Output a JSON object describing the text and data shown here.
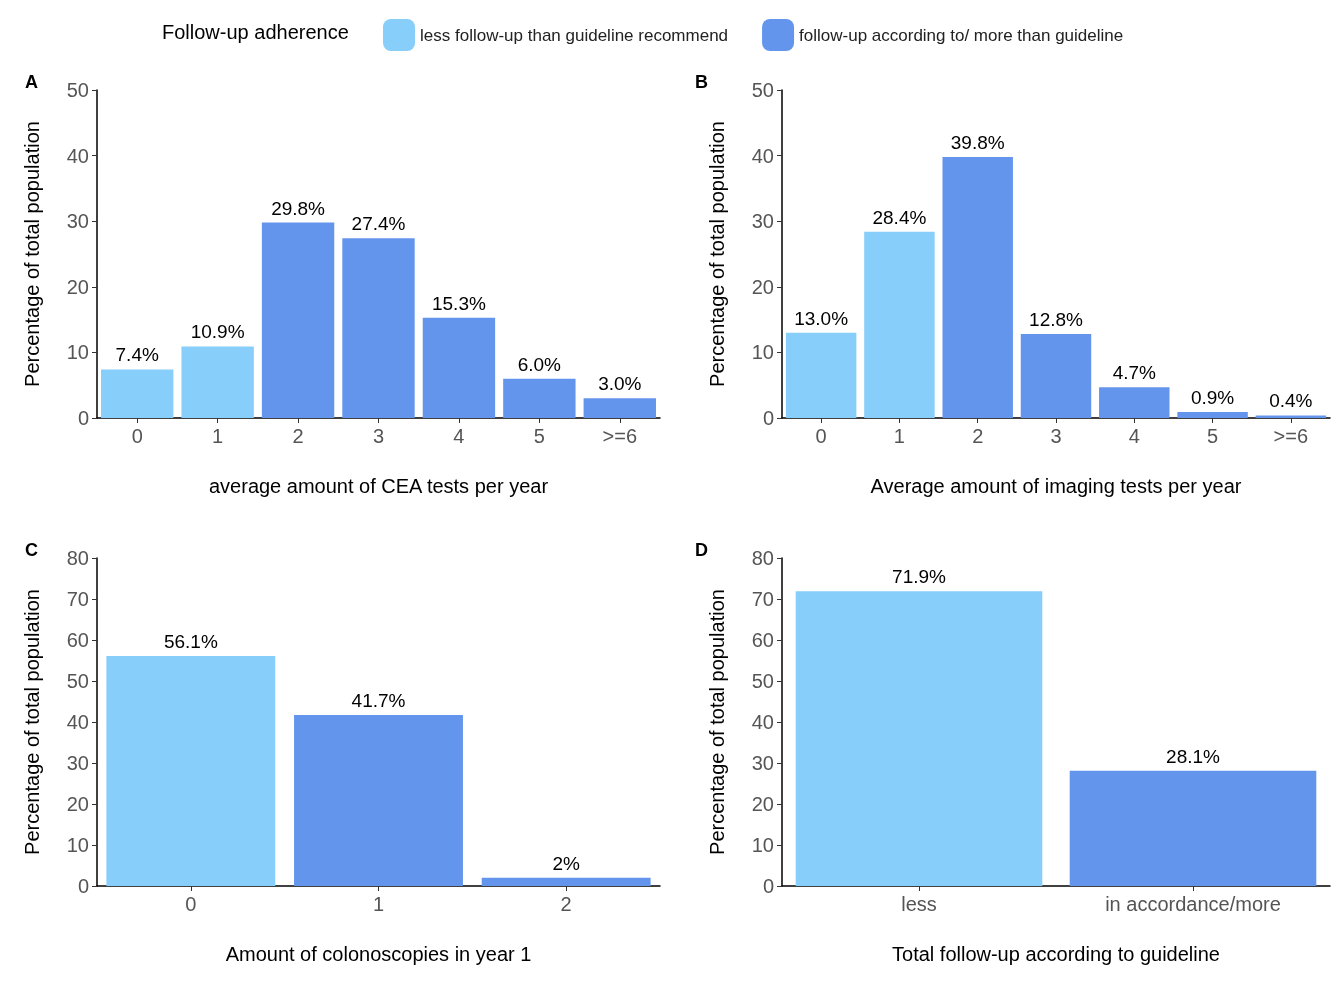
{
  "chart_data": [
    {
      "type": "bar",
      "title": "A",
      "legend_title": "Follow-up adherence",
      "legend": "top",
      "stacked": true,
      "xlabel": "average amount of CEA tests per year",
      "ylabel": "Percentage of total population",
      "categories": [
        "0",
        "1",
        "2",
        "3",
        "4",
        "5",
        ">=6"
      ],
      "ylim": [
        0,
        50
      ],
      "yticks": [
        0,
        10,
        20,
        30,
        40,
        50
      ],
      "grid": false,
      "series": [
        {
          "name": "less follow-up than guideline recommend",
          "color": "#87cefa",
          "values": [
            7.4,
            10.9,
            null,
            null,
            null,
            null,
            null
          ],
          "value_labels": [
            "7.4%",
            "10.9%",
            null,
            null,
            null,
            null,
            null
          ]
        },
        {
          "name": "follow-up according to/ more than guideline",
          "color": "#6495ed",
          "values": [
            null,
            null,
            29.8,
            27.4,
            15.3,
            6.0,
            3.0
          ],
          "value_labels": [
            null,
            null,
            "29.8%",
            "27.4%",
            "15.3%",
            "6.0%",
            "3.0%"
          ]
        }
      ]
    },
    {
      "type": "bar",
      "title": "B",
      "stacked": true,
      "xlabel": "Average amount of imaging tests per year",
      "ylabel": "Percentage of total population",
      "categories": [
        "0",
        "1",
        "2",
        "3",
        "4",
        "5",
        ">=6"
      ],
      "ylim": [
        0,
        50
      ],
      "yticks": [
        0,
        10,
        20,
        30,
        40,
        50
      ],
      "grid": false,
      "series": [
        {
          "color": "#87cefa",
          "values": [
            13.0,
            28.4,
            null,
            null,
            null,
            null,
            null
          ],
          "value_labels": [
            "13.0%",
            "28.4%",
            null,
            null,
            null,
            null,
            null
          ]
        },
        {
          "color": "#6495ed",
          "values": [
            null,
            null,
            39.8,
            12.8,
            4.7,
            0.9,
            0.4
          ],
          "value_labels": [
            null,
            null,
            "39.8%",
            "12.8%",
            "4.7%",
            "0.9%",
            "0.4%"
          ]
        }
      ]
    },
    {
      "type": "bar",
      "title": "C",
      "stacked": true,
      "xlabel": "Amount of colonoscopies in year 1",
      "ylabel": "Percentage of total population",
      "categories": [
        "0",
        "1",
        "2"
      ],
      "ylim": [
        0,
        80
      ],
      "yticks": [
        0,
        10,
        20,
        30,
        40,
        50,
        60,
        70,
        80
      ],
      "grid": false,
      "series": [
        {
          "color": "#87cefa",
          "values": [
            56.1,
            null,
            null
          ],
          "value_labels": [
            "56.1%",
            null,
            null
          ]
        },
        {
          "color": "#6495ed",
          "values": [
            null,
            41.7,
            2
          ],
          "value_labels": [
            null,
            "41.7%",
            "2%"
          ]
        }
      ]
    },
    {
      "type": "bar",
      "title": "D",
      "stacked": true,
      "xlabel": "Total follow-up according to guideline",
      "ylabel": "Percentage of total population",
      "categories": [
        "less",
        "in accordance/more"
      ],
      "ylim": [
        0,
        80
      ],
      "yticks": [
        0,
        10,
        20,
        30,
        40,
        50,
        60,
        70,
        80
      ],
      "grid": false,
      "series": [
        {
          "color": "#87cefa",
          "values": [
            71.9,
            null
          ],
          "value_labels": [
            "71.9%",
            null
          ]
        },
        {
          "color": "#6495ed",
          "values": [
            null,
            28.1
          ],
          "value_labels": [
            null,
            "28.1%"
          ]
        }
      ]
    }
  ]
}
